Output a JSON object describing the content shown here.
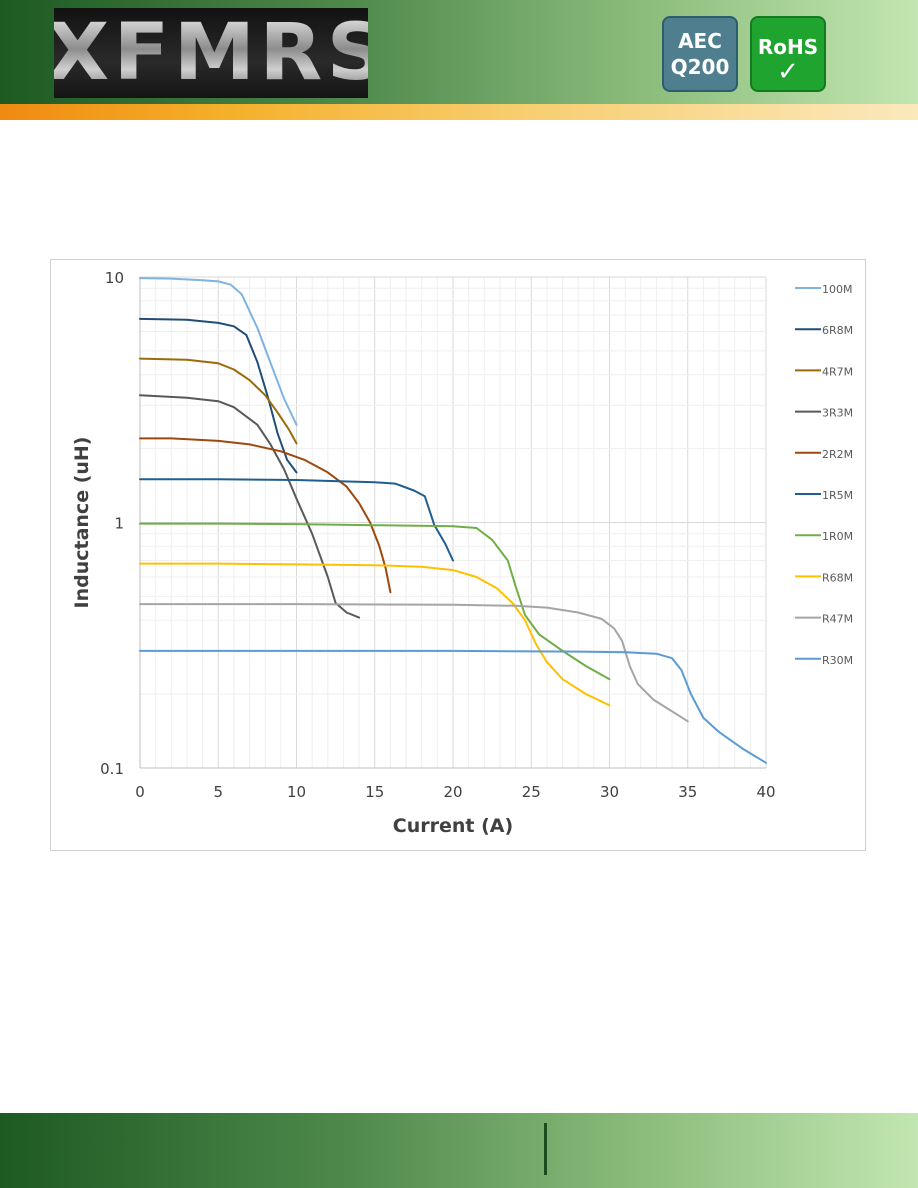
{
  "header": {
    "logo_text": "XFMRS",
    "badges": {
      "aec_line1": "AEC",
      "aec_line2": "Q200",
      "rohs_line1": "RoHS",
      "rohs_check": "✓"
    }
  },
  "colors": {
    "header_start": "#1d5a22",
    "header_end": "#c2e6b1",
    "accent_stripe": "#f5a623",
    "aec_badge": "#4f7f8f",
    "rohs_badge": "#1fa52f"
  },
  "chart_data": {
    "type": "line",
    "xlabel": "Current (A)",
    "ylabel": "Inductance (uH)",
    "xlim": [
      0,
      40
    ],
    "ylim": [
      0.1,
      10
    ],
    "yscale": "log",
    "x_ticks": [
      "0",
      "5",
      "10",
      "15",
      "20",
      "25",
      "30",
      "35",
      "40"
    ],
    "y_ticks": [
      "10",
      "1",
      "0.1"
    ],
    "grid": true,
    "legend": "right",
    "series": [
      {
        "name": "100M",
        "color": "#7fb3e0",
        "points": [
          [
            0,
            9.9
          ],
          [
            2,
            9.85
          ],
          [
            4,
            9.7
          ],
          [
            5,
            9.6
          ],
          [
            5.8,
            9.3
          ],
          [
            6.5,
            8.5
          ],
          [
            7.5,
            6.2
          ],
          [
            8.5,
            4.2
          ],
          [
            9.2,
            3.2
          ],
          [
            10,
            2.5
          ]
        ]
      },
      {
        "name": "6R8M",
        "color": "#1f4e79",
        "points": [
          [
            0,
            6.75
          ],
          [
            3,
            6.7
          ],
          [
            5,
            6.5
          ],
          [
            6,
            6.3
          ],
          [
            6.8,
            5.8
          ],
          [
            7.5,
            4.5
          ],
          [
            8.2,
            3.2
          ],
          [
            8.8,
            2.3
          ],
          [
            9.4,
            1.8
          ],
          [
            10,
            1.6
          ]
        ]
      },
      {
        "name": "4R7M",
        "color": "#9c6b09",
        "points": [
          [
            0,
            4.65
          ],
          [
            3,
            4.6
          ],
          [
            5,
            4.45
          ],
          [
            6,
            4.2
          ],
          [
            7,
            3.8
          ],
          [
            8,
            3.3
          ],
          [
            8.8,
            2.8
          ],
          [
            9.5,
            2.4
          ],
          [
            10,
            2.1
          ]
        ]
      },
      {
        "name": "3R3M",
        "color": "#595959",
        "points": [
          [
            0,
            3.3
          ],
          [
            3,
            3.22
          ],
          [
            5,
            3.12
          ],
          [
            6,
            2.95
          ],
          [
            7.5,
            2.5
          ],
          [
            8.3,
            2.1
          ],
          [
            9.2,
            1.65
          ],
          [
            10,
            1.25
          ],
          [
            11,
            0.9
          ],
          [
            12,
            0.6
          ],
          [
            12.5,
            0.47
          ],
          [
            13.2,
            0.43
          ],
          [
            14,
            0.41
          ]
        ]
      },
      {
        "name": "2R2M",
        "color": "#9e480e",
        "points": [
          [
            0,
            2.2
          ],
          [
            2,
            2.2
          ],
          [
            5,
            2.15
          ],
          [
            7,
            2.08
          ],
          [
            9,
            1.95
          ],
          [
            10.5,
            1.8
          ],
          [
            12,
            1.6
          ],
          [
            13.2,
            1.4
          ],
          [
            14,
            1.2
          ],
          [
            14.7,
            1.0
          ],
          [
            15.3,
            0.8
          ],
          [
            15.7,
            0.65
          ],
          [
            16,
            0.52
          ]
        ]
      },
      {
        "name": "1R5M",
        "color": "#1f5e8f",
        "points": [
          [
            0,
            1.5
          ],
          [
            5,
            1.5
          ],
          [
            10,
            1.49
          ],
          [
            13,
            1.47
          ],
          [
            15,
            1.46
          ],
          [
            16.3,
            1.44
          ],
          [
            17.5,
            1.35
          ],
          [
            18.2,
            1.28
          ],
          [
            18.5,
            1.12
          ],
          [
            18.8,
            0.98
          ],
          [
            19.5,
            0.82
          ],
          [
            20,
            0.7
          ]
        ]
      },
      {
        "name": "1R0M",
        "color": "#70ad47",
        "points": [
          [
            0,
            0.99
          ],
          [
            5,
            0.99
          ],
          [
            10,
            0.985
          ],
          [
            15,
            0.975
          ],
          [
            20,
            0.965
          ],
          [
            21.5,
            0.95
          ],
          [
            22.5,
            0.85
          ],
          [
            23.5,
            0.7
          ],
          [
            24,
            0.55
          ],
          [
            24.6,
            0.42
          ],
          [
            25.5,
            0.35
          ],
          [
            27,
            0.3
          ],
          [
            28.5,
            0.26
          ],
          [
            30,
            0.23
          ]
        ]
      },
      {
        "name": "R68M",
        "color": "#ffc000",
        "points": [
          [
            0,
            0.68
          ],
          [
            5,
            0.68
          ],
          [
            10,
            0.675
          ],
          [
            15,
            0.67
          ],
          [
            18,
            0.66
          ],
          [
            20,
            0.64
          ],
          [
            21.5,
            0.6
          ],
          [
            22.8,
            0.54
          ],
          [
            23.8,
            0.47
          ],
          [
            24.6,
            0.4
          ],
          [
            25.3,
            0.32
          ],
          [
            26,
            0.27
          ],
          [
            27,
            0.23
          ],
          [
            28.5,
            0.2
          ],
          [
            30,
            0.18
          ]
        ]
      },
      {
        "name": "R47M",
        "color": "#a5a5a5",
        "points": [
          [
            0,
            0.465
          ],
          [
            10,
            0.465
          ],
          [
            20,
            0.462
          ],
          [
            24,
            0.458
          ],
          [
            26,
            0.45
          ],
          [
            28,
            0.43
          ],
          [
            29.5,
            0.405
          ],
          [
            30.3,
            0.37
          ],
          [
            30.8,
            0.33
          ],
          [
            31.3,
            0.26
          ],
          [
            31.8,
            0.22
          ],
          [
            32.8,
            0.19
          ],
          [
            34,
            0.17
          ],
          [
            35,
            0.155
          ]
        ]
      },
      {
        "name": "R30M",
        "color": "#5b9bd5",
        "points": [
          [
            0,
            0.3
          ],
          [
            10,
            0.3
          ],
          [
            20,
            0.3
          ],
          [
            28,
            0.298
          ],
          [
            31,
            0.296
          ],
          [
            33,
            0.292
          ],
          [
            34,
            0.28
          ],
          [
            34.6,
            0.25
          ],
          [
            35.2,
            0.2
          ],
          [
            36,
            0.16
          ],
          [
            37,
            0.14
          ],
          [
            38.5,
            0.12
          ],
          [
            40,
            0.105
          ]
        ]
      }
    ]
  }
}
